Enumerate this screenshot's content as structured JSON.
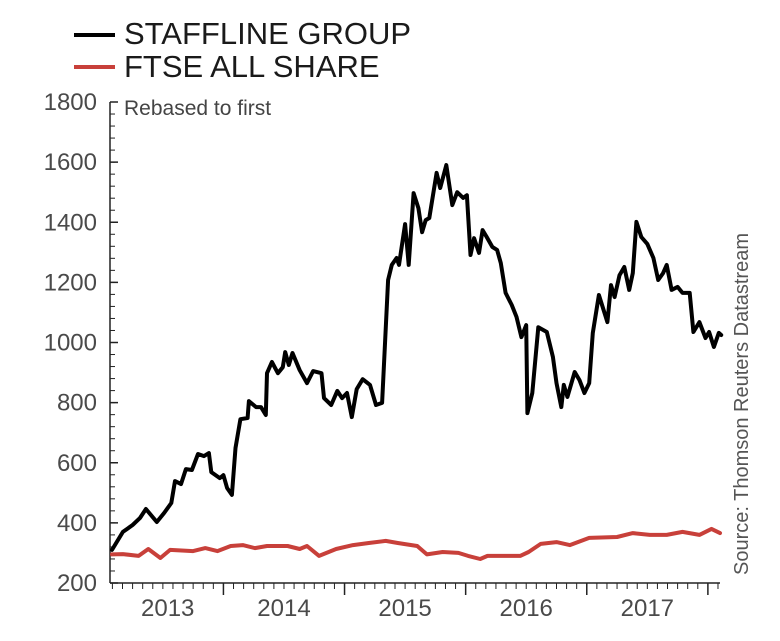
{
  "chart_data": {
    "type": "line",
    "title": "",
    "subtitle": "Rebased to first",
    "source": "Source: Thomson Reuters Datastream",
    "xlabel": "",
    "ylabel": "",
    "xlim": [
      2013.08,
      2018.1
    ],
    "ylim": [
      200,
      1800
    ],
    "y_ticks": [
      200,
      400,
      600,
      800,
      1000,
      1200,
      1400,
      1600,
      1800
    ],
    "y_tick_labels": [
      "200",
      "400",
      "600",
      "800",
      "1000",
      "1200",
      "1400",
      "1600",
      "1800"
    ],
    "x_tick_labels": [
      "2013",
      "2014",
      "2015",
      "2016",
      "2017"
    ],
    "grid": false,
    "legend_position": "top-left",
    "series": [
      {
        "name": "STAFFLINE GROUP",
        "color": "#000000",
        "x": [
          2013.08,
          2013.17,
          2013.25,
          2013.31,
          2013.36,
          2013.45,
          2013.51,
          2013.57,
          2013.6,
          2013.65,
          2013.69,
          2013.74,
          2013.79,
          2013.84,
          2013.88,
          2013.9,
          2013.97,
          2014.0,
          2014.03,
          2014.07,
          2014.1,
          2014.14,
          2014.2,
          2014.21,
          2014.27,
          2014.31,
          2014.35,
          2014.36,
          2014.4,
          2014.45,
          2014.49,
          2014.51,
          2014.54,
          2014.57,
          2014.63,
          2014.69,
          2014.74,
          2014.81,
          2014.83,
          2014.89,
          2014.94,
          2014.98,
          2015.02,
          2015.06,
          2015.1,
          2015.15,
          2015.21,
          2015.26,
          2015.31,
          2015.36,
          2015.39,
          2015.43,
          2015.45,
          2015.47,
          2015.5,
          2015.53,
          2015.57,
          2015.61,
          2015.64,
          2015.67,
          2015.7,
          2015.76,
          2015.79,
          2015.84,
          2015.89,
          2015.93,
          2015.98,
          2016.01,
          2016.04,
          2016.07,
          2016.11,
          2016.14,
          2016.17,
          2016.22,
          2016.26,
          2016.29,
          2016.33,
          2016.38,
          2016.42,
          2016.46,
          2016.5,
          2016.51,
          2016.55,
          2016.6,
          2016.67,
          2016.72,
          2016.75,
          2016.79,
          2016.81,
          2016.84,
          2016.9,
          2016.94,
          2016.98,
          2017.02,
          2017.05,
          2017.1,
          2017.17,
          2017.2,
          2017.23,
          2017.27,
          2017.31,
          2017.35,
          2017.38,
          2017.41,
          2017.45,
          2017.5,
          2017.55,
          2017.59,
          2017.63,
          2017.66,
          2017.7,
          2017.75,
          2017.79,
          2017.85,
          2017.88,
          2017.93,
          2017.98,
          2018.01,
          2018.05,
          2018.09,
          2018.11
        ],
        "values": [
          310,
          370,
          393,
          416,
          446,
          403,
          433,
          466,
          539,
          529,
          579,
          576,
          629,
          622,
          632,
          569,
          549,
          559,
          516,
          493,
          649,
          745,
          749,
          805,
          785,
          785,
          759,
          898,
          935,
          898,
          918,
          968,
          925,
          965,
          908,
          865,
          905,
          898,
          815,
          792,
          839,
          815,
          832,
          752,
          845,
          878,
          859,
          792,
          799,
          1208,
          1258,
          1281,
          1258,
          1314,
          1394,
          1258,
          1497,
          1447,
          1367,
          1407,
          1414,
          1564,
          1514,
          1590,
          1457,
          1500,
          1481,
          1490,
          1291,
          1347,
          1298,
          1374,
          1354,
          1318,
          1308,
          1264,
          1165,
          1125,
          1085,
          1018,
          1058,
          765,
          832,
          1051,
          1035,
          952,
          865,
          785,
          859,
          819,
          902,
          875,
          832,
          865,
          1032,
          1158,
          1068,
          1191,
          1151,
          1224,
          1251,
          1175,
          1231,
          1401,
          1351,
          1328,
          1281,
          1208,
          1231,
          1258,
          1175,
          1185,
          1165,
          1165,
          1035,
          1068,
          1015,
          1035,
          985,
          1032,
          1025
        ]
      },
      {
        "name": "FTSE ALL SHARE",
        "color": "#c8403a",
        "x": [
          2013.08,
          2013.17,
          2013.3,
          2013.38,
          2013.48,
          2013.56,
          2013.75,
          2013.85,
          2013.95,
          2014.06,
          2014.16,
          2014.26,
          2014.36,
          2014.53,
          2014.63,
          2014.69,
          2014.79,
          2014.93,
          2015.07,
          2015.2,
          2015.34,
          2015.44,
          2015.6,
          2015.68,
          2015.81,
          2015.94,
          2016.02,
          2016.12,
          2016.18,
          2016.35,
          2016.45,
          2016.52,
          2016.62,
          2016.75,
          2016.86,
          2017.02,
          2017.25,
          2017.38,
          2017.52,
          2017.66,
          2017.79,
          2017.93,
          2018.03,
          2018.1
        ],
        "values": [
          295,
          296,
          290,
          313,
          283,
          310,
          306,
          316,
          306,
          323,
          326,
          316,
          323,
          323,
          313,
          323,
          290,
          313,
          326,
          333,
          340,
          333,
          323,
          295,
          303,
          300,
          290,
          280,
          290,
          290,
          290,
          303,
          330,
          336,
          326,
          350,
          353,
          366,
          360,
          360,
          370,
          360,
          380,
          366
        ]
      }
    ]
  }
}
